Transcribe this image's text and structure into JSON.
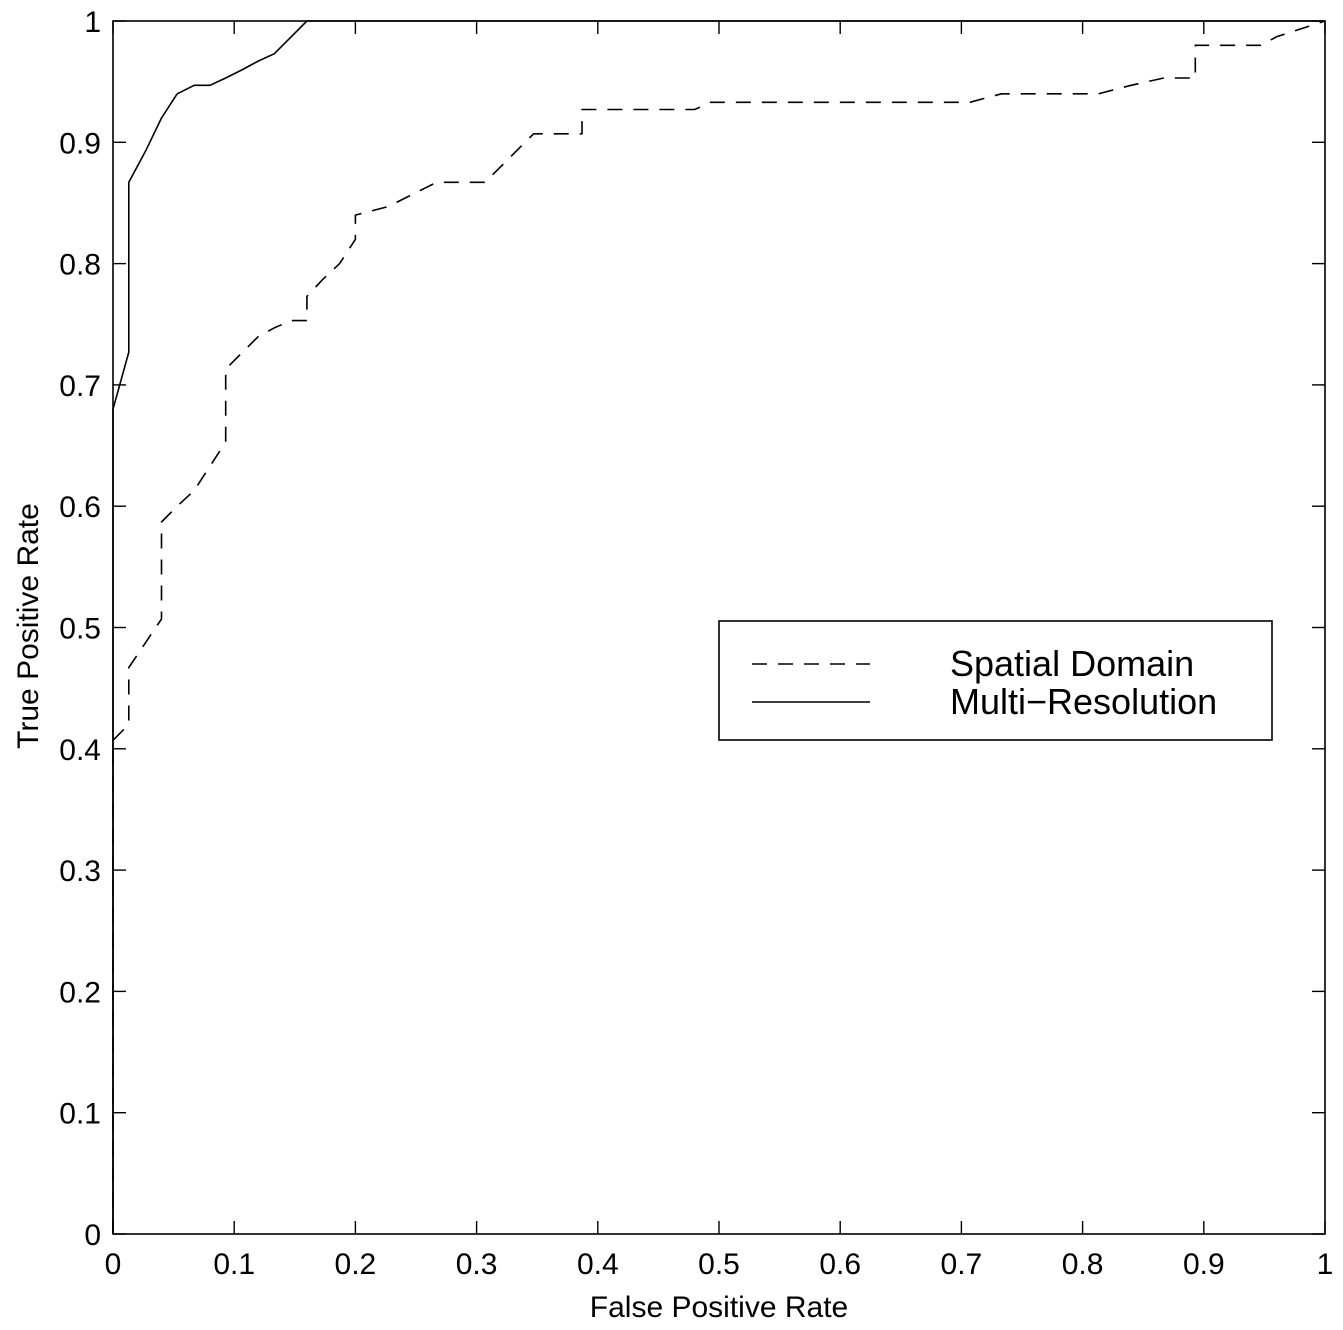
{
  "chart_data": {
    "type": "line",
    "title": "",
    "xlabel": "False Positive Rate",
    "ylabel": "True Positive Rate",
    "xlim": [
      0,
      1
    ],
    "ylim": [
      0,
      1
    ],
    "xticks": [
      "0",
      "0.1",
      "0.2",
      "0.3",
      "0.4",
      "0.5",
      "0.6",
      "0.7",
      "0.8",
      "0.9",
      "1"
    ],
    "yticks": [
      "0",
      "0.1",
      "0.2",
      "0.3",
      "0.4",
      "0.5",
      "0.6",
      "0.7",
      "0.8",
      "0.9",
      "1"
    ],
    "grid": false,
    "legend_position": "center-right",
    "series": [
      {
        "name": "Spatial Domain",
        "style": "dashed",
        "color": "#000000",
        "x": [
          0,
          0,
          0.013,
          0.013,
          0.04,
          0.04,
          0.053,
          0.067,
          0.08,
          0.093,
          0.093,
          0.107,
          0.12,
          0.133,
          0.147,
          0.16,
          0.16,
          0.173,
          0.187,
          0.2,
          0.2,
          0.227,
          0.253,
          0.267,
          0.293,
          0.307,
          0.32,
          0.347,
          0.36,
          0.387,
          0.387,
          0.413,
          0.44,
          0.467,
          0.48,
          0.493,
          0.52,
          0.547,
          0.573,
          0.6,
          0.627,
          0.653,
          0.68,
          0.707,
          0.733,
          0.76,
          0.787,
          0.813,
          0.84,
          0.867,
          0.893,
          0.893,
          0.92,
          0.947,
          0.96,
          1
        ],
        "y": [
          0,
          0.407,
          0.42,
          0.467,
          0.507,
          0.587,
          0.6,
          0.613,
          0.633,
          0.653,
          0.713,
          0.727,
          0.74,
          0.747,
          0.753,
          0.753,
          0.773,
          0.787,
          0.8,
          0.82,
          0.84,
          0.847,
          0.86,
          0.867,
          0.867,
          0.867,
          0.88,
          0.907,
          0.907,
          0.907,
          0.927,
          0.927,
          0.927,
          0.927,
          0.927,
          0.933,
          0.933,
          0.933,
          0.933,
          0.933,
          0.933,
          0.933,
          0.933,
          0.933,
          0.94,
          0.94,
          0.94,
          0.94,
          0.947,
          0.953,
          0.953,
          0.98,
          0.98,
          0.98,
          0.987,
          1
        ]
      },
      {
        "name": "Multi−Resolution",
        "style": "solid",
        "color": "#000000",
        "x": [
          0,
          0,
          0.013,
          0.013,
          0.027,
          0.04,
          0.053,
          0.067,
          0.08,
          0.093,
          0.107,
          0.12,
          0.133,
          0.147,
          0.16,
          1
        ],
        "y": [
          0,
          0.68,
          0.727,
          0.867,
          0.893,
          0.92,
          0.94,
          0.947,
          0.947,
          0.953,
          0.96,
          0.967,
          0.973,
          0.987,
          1,
          1
        ]
      }
    ]
  }
}
